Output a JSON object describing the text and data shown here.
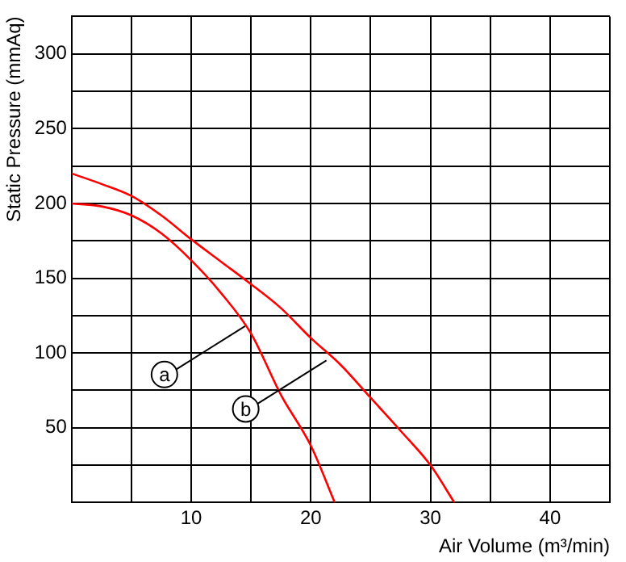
{
  "chart_data": {
    "type": "line",
    "xlabel": "Air Volume (m³/min)",
    "ylabel": "Static Pressure (mmAq)",
    "xlim": [
      0,
      45
    ],
    "ylim": [
      0,
      325
    ],
    "xticks": [
      {
        "value": 0,
        "label": null
      },
      {
        "value": 5,
        "label": null
      },
      10,
      {
        "value": 15,
        "label": null
      },
      20,
      {
        "value": 25,
        "label": null
      },
      30,
      {
        "value": 35,
        "label": null
      },
      40,
      {
        "value": 45,
        "label": null
      }
    ],
    "yticks": [
      {
        "value": 0,
        "label": null
      },
      {
        "value": 25,
        "label": null
      },
      50,
      {
        "value": 75,
        "label": null
      },
      100,
      {
        "value": 125,
        "label": null
      },
      150,
      {
        "value": 175,
        "label": null
      },
      200,
      {
        "value": 225,
        "label": null
      },
      250,
      {
        "value": 275,
        "label": null
      },
      300,
      {
        "value": 325,
        "label": null
      }
    ],
    "grid": true,
    "legend": false,
    "marker": "none",
    "line_style": "solid",
    "series": [
      {
        "color": "#ff0000",
        "x": [
          0,
          2.5,
          5,
          7.5,
          10,
          12.5,
          15,
          17.5,
          20,
          22
        ],
        "values": [
          200,
          198,
          192,
          180,
          162,
          140,
          113,
          72,
          38,
          0
        ]
      },
      {
        "color": "#ff0000",
        "x": [
          0,
          2.5,
          5,
          7.5,
          10,
          12.5,
          15,
          17.5,
          20,
          22.5,
          25,
          27.5,
          30,
          32
        ],
        "values": [
          220,
          213,
          205,
          192,
          176,
          161,
          146,
          130,
          110,
          92,
          70,
          48,
          25,
          0
        ]
      }
    ],
    "annotations": [
      {
        "text": "a",
        "x": 14.5,
        "y": 118
      },
      {
        "text": "b",
        "x": 21.3,
        "y": 95
      }
    ]
  }
}
